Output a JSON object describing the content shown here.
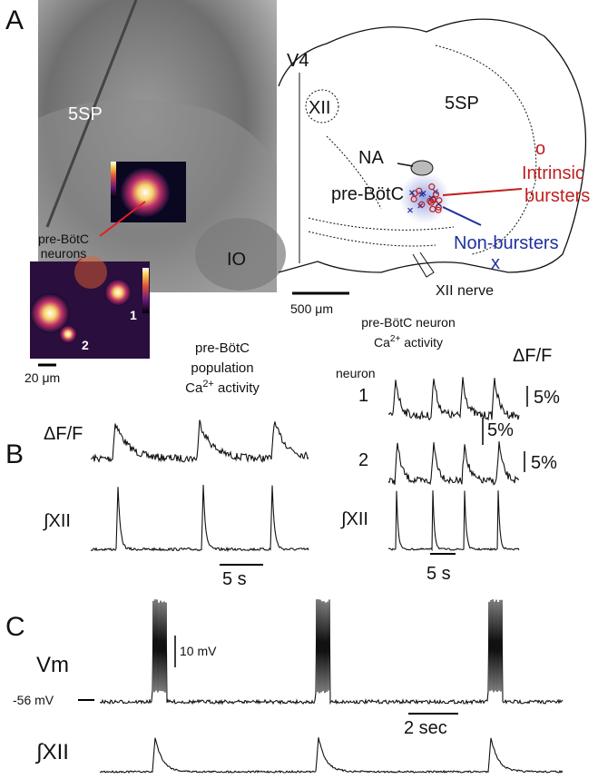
{
  "panel_a": {
    "label": "A",
    "photo": {
      "region_label": "5SP",
      "cell_label": [
        "pre-BötC",
        "neurons"
      ],
      "io_label": "IO",
      "neuron_labels": [
        "1",
        "2"
      ],
      "scale_bar": "20 μm"
    },
    "atlas": {
      "v4": "V4",
      "xii": "XII",
      "region_label": "5SP",
      "na": "NA",
      "prebotc": "pre-BötC",
      "intrinsic_symbol": "o",
      "intrinsic": [
        "Intrinsic",
        "bursters"
      ],
      "non_symbol": "x",
      "non": "Non-bursters",
      "nerve": "XII nerve",
      "scale_bar": "500 μm"
    }
  },
  "panel_b": {
    "label": "B",
    "population": {
      "title": [
        "pre-BötC",
        "population"
      ],
      "ca": [
        "Ca",
        "2+",
        " activity"
      ],
      "dff": "ΔF/F",
      "dff_scale": "5%",
      "xii": "∫XII",
      "time_scale": "5 s"
    },
    "neuron": {
      "title": "pre-BötC neuron",
      "ca": [
        "Ca",
        "2+",
        " activity"
      ],
      "dff": "ΔF/F",
      "neuron": "neuron",
      "ids": [
        "1",
        "2"
      ],
      "dff_scales": [
        "5%",
        "5%"
      ],
      "xii": "∫XII",
      "time_scale": "5 s"
    }
  },
  "panel_c": {
    "label": "C",
    "vm": "Vm",
    "vm_scale": "10 mV",
    "rest": "-56 mV",
    "time_scale": "2 sec",
    "xii": "∫XII"
  }
}
